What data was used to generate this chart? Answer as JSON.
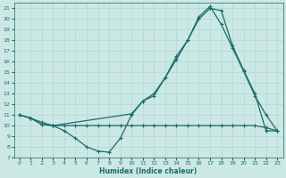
{
  "xlabel": "Humidex (Indice chaleur)",
  "bg_color": "#cce8e4",
  "line_color": "#1a6b6b",
  "grid_color": "#b0d8d4",
  "xlim": [
    -0.5,
    23.5
  ],
  "ylim": [
    7,
    21.5
  ],
  "yticks": [
    7,
    8,
    9,
    10,
    11,
    12,
    13,
    14,
    15,
    16,
    17,
    18,
    19,
    20,
    21
  ],
  "xticks": [
    0,
    1,
    2,
    3,
    4,
    5,
    6,
    7,
    8,
    9,
    10,
    11,
    12,
    13,
    14,
    15,
    16,
    17,
    18,
    19,
    20,
    21,
    22,
    23
  ],
  "curve1_x": [
    0,
    1,
    2,
    3,
    4,
    5,
    6,
    7,
    8,
    9,
    10,
    11,
    12,
    13,
    14,
    15,
    16,
    17,
    18,
    19,
    20,
    21,
    22,
    23
  ],
  "curve1_y": [
    11,
    10.7,
    10.1,
    10.0,
    9.5,
    8.8,
    8.0,
    7.6,
    7.5,
    8.8,
    11.0,
    12.3,
    12.8,
    14.5,
    16.5,
    18.0,
    20.0,
    21.0,
    20.8,
    17.5,
    15.2,
    13.0,
    9.5,
    9.5
  ],
  "curve2_x": [
    0,
    1,
    2,
    3,
    4,
    5,
    6,
    7,
    8,
    9,
    10,
    11,
    12,
    13,
    14,
    15,
    16,
    17,
    18,
    19,
    20,
    21,
    22,
    23
  ],
  "curve2_y": [
    11.0,
    10.7,
    10.1,
    10.0,
    10.0,
    10.0,
    10.0,
    10.0,
    10.0,
    10.0,
    10.0,
    10.0,
    10.0,
    10.0,
    10.0,
    10.0,
    10.0,
    10.0,
    10.0,
    10.0,
    10.0,
    10.0,
    9.8,
    9.5
  ],
  "curve3_x": [
    0,
    1,
    2,
    3,
    10,
    11,
    12,
    13,
    14,
    15,
    16,
    17,
    18,
    19,
    20,
    21,
    22,
    23
  ],
  "curve3_y": [
    11.0,
    10.7,
    10.3,
    10.0,
    11.1,
    12.3,
    13.0,
    14.5,
    16.2,
    18.0,
    20.2,
    21.2,
    19.5,
    17.3,
    15.1,
    12.8,
    11.0,
    9.5
  ]
}
